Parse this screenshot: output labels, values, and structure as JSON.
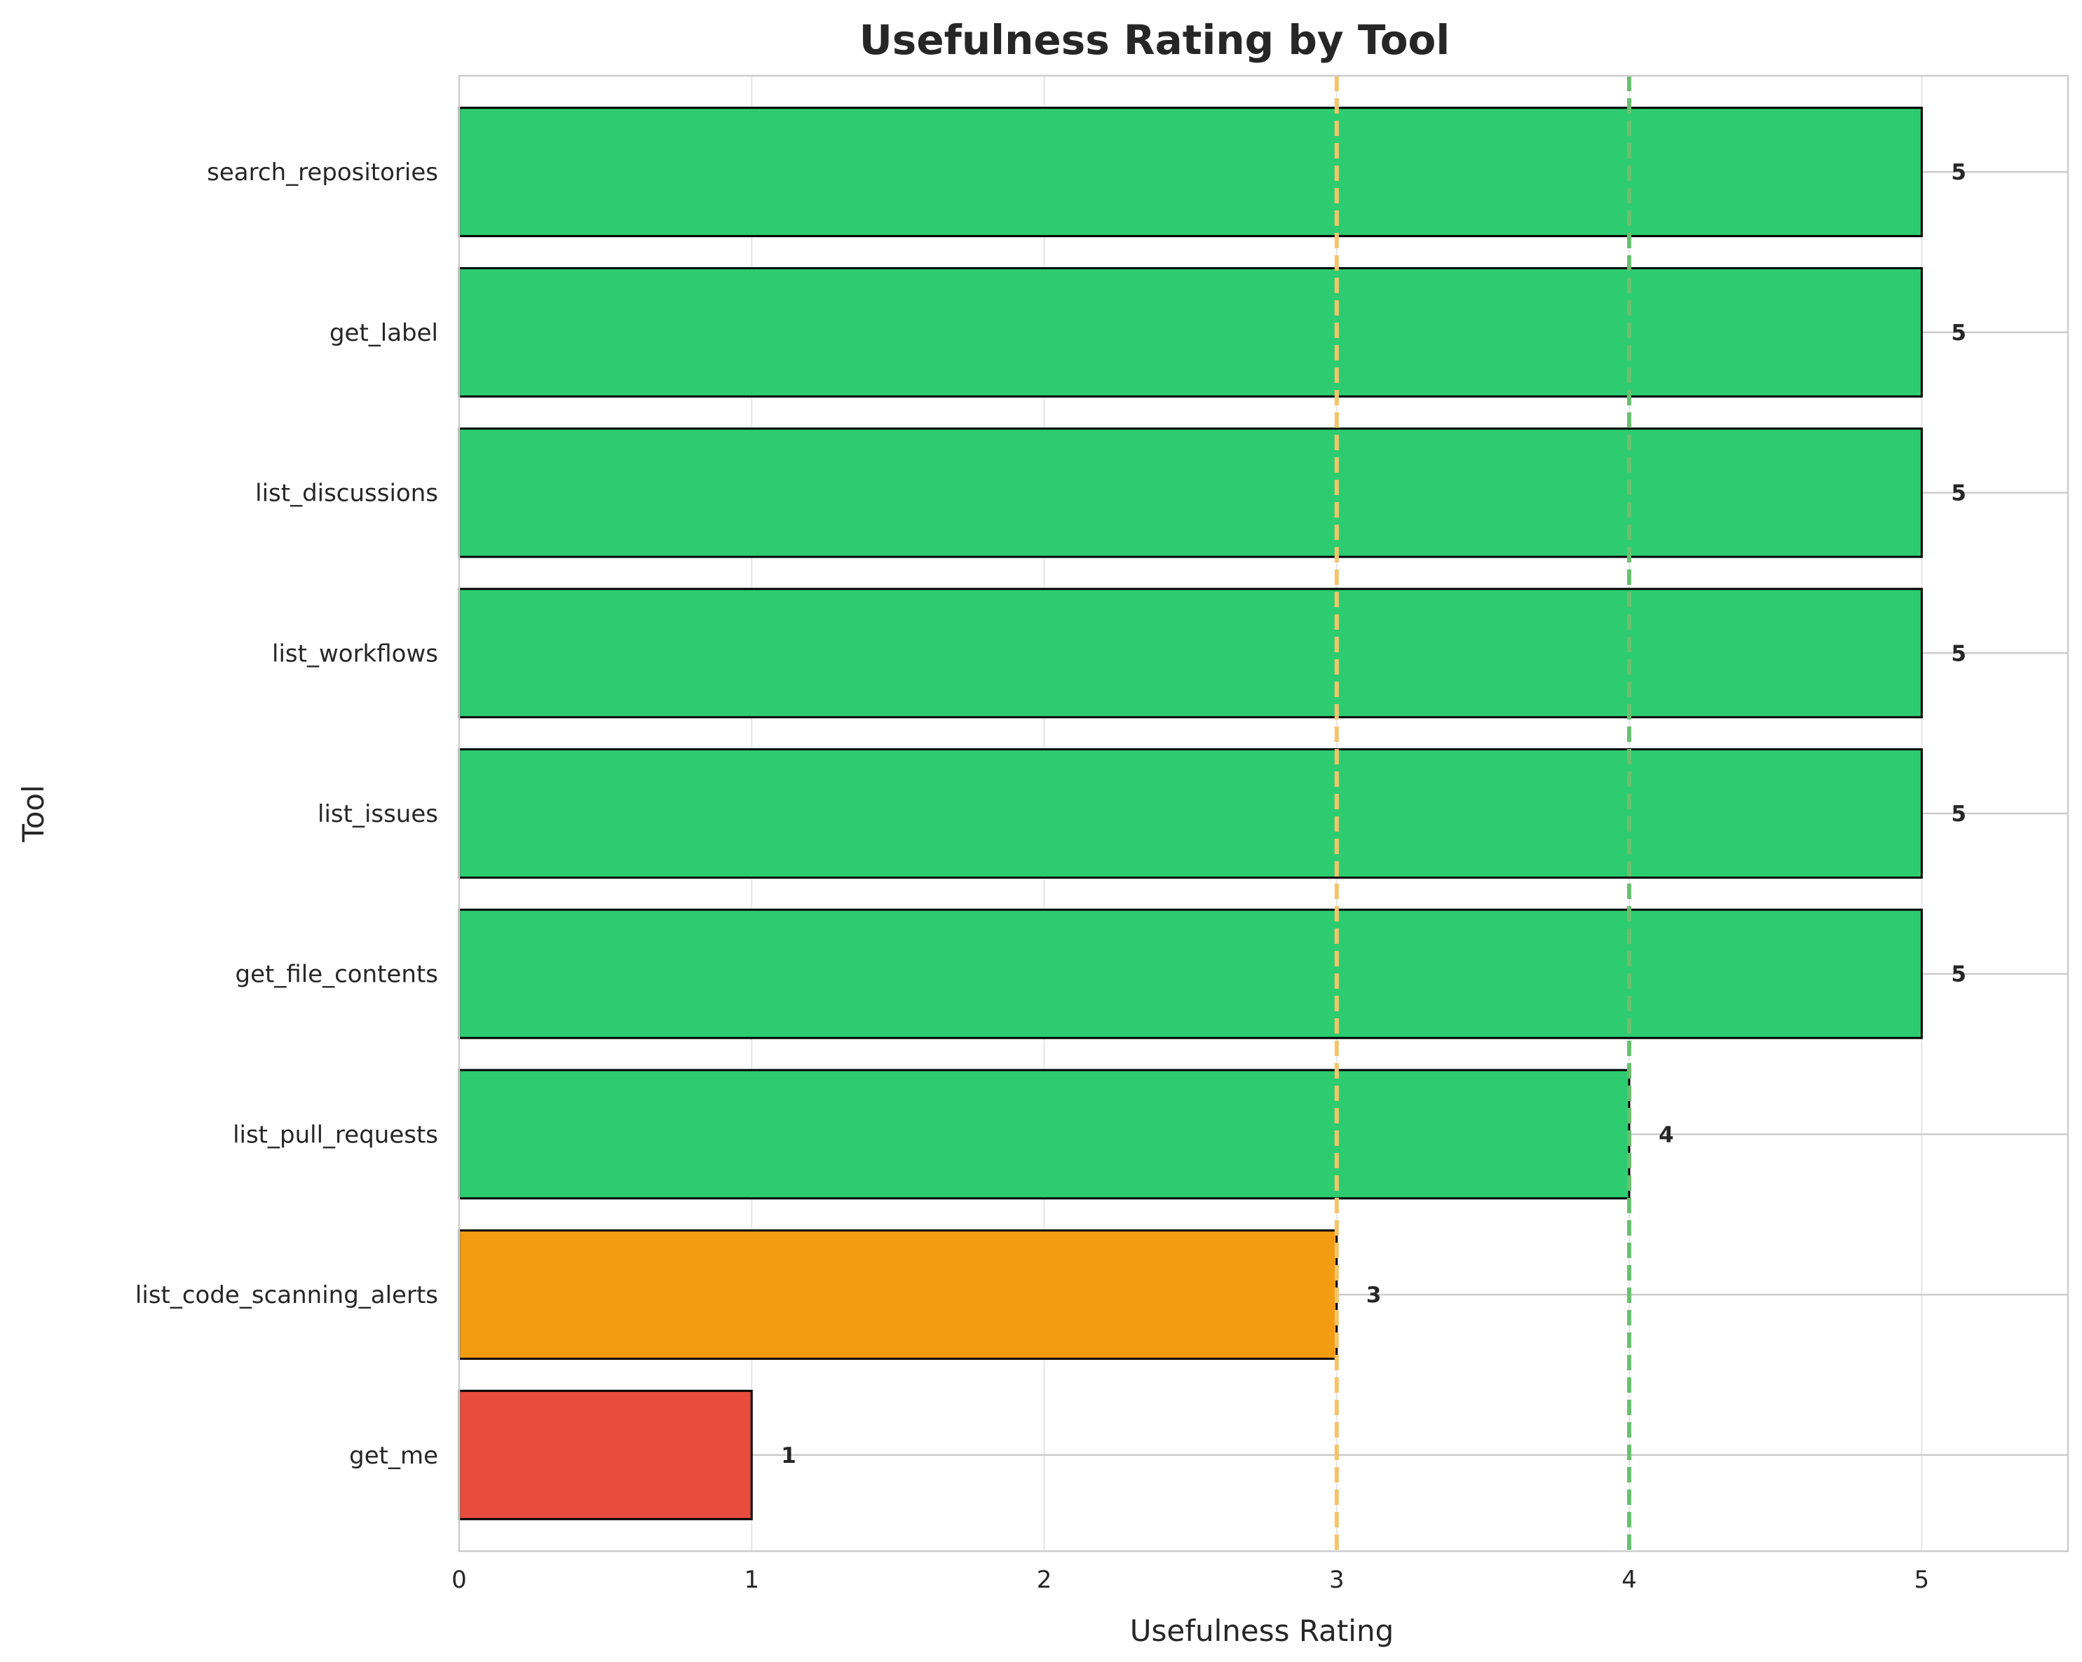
{
  "colors": {
    "high": "#2ecc71",
    "medium": "#f39c12",
    "low": "#e74c3c",
    "threshold_medium": "#f5c46a",
    "threshold_high": "#6abf6e",
    "grid": "#e6e6e6",
    "spine": "#cccccc",
    "bar_edge": "#000000",
    "text": "#262626"
  },
  "chart_data": {
    "type": "bar",
    "orientation": "horizontal",
    "title": "Usefulness Rating by Tool",
    "xlabel": "Usefulness Rating",
    "ylabel": "Tool",
    "xlim": [
      0,
      5.5
    ],
    "xticks": [
      0,
      1,
      2,
      3,
      4,
      5
    ],
    "grid": true,
    "categories": [
      "search_repositories",
      "get_label",
      "list_discussions",
      "list_workflows",
      "list_issues",
      "get_file_contents",
      "list_pull_requests",
      "list_code_scanning_alerts",
      "get_me"
    ],
    "values": [
      5,
      5,
      5,
      5,
      5,
      5,
      4,
      3,
      1
    ],
    "bar_colors": [
      "high",
      "high",
      "high",
      "high",
      "high",
      "high",
      "high",
      "medium",
      "low"
    ],
    "thresholds": [
      {
        "value": 3,
        "color": "threshold_medium",
        "style": "dashed"
      },
      {
        "value": 4,
        "color": "threshold_high",
        "style": "dashed"
      }
    ]
  }
}
